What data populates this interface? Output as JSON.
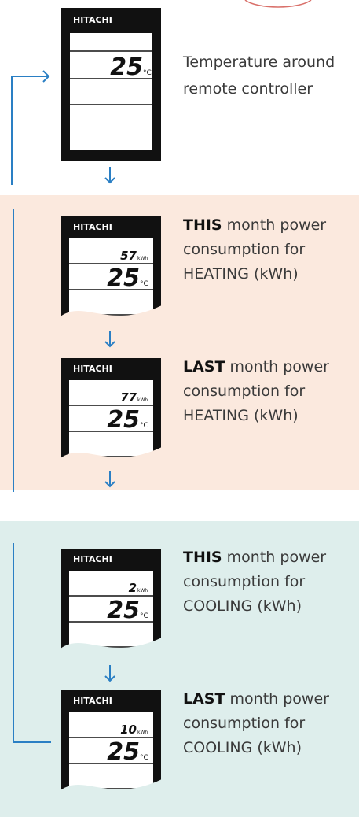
{
  "devices": [
    {
      "brand": "HITACHI",
      "temperature": "25",
      "temperature_unit": "°C",
      "description": "Temperature around remote controller"
    },
    {
      "brand": "HITACHI",
      "reading": "57",
      "reading_unit": "kWh",
      "temperature": "25",
      "temperature_unit": "°C",
      "description_bold": "THIS",
      "description": "month power consumption for HEATING (kWh)"
    },
    {
      "brand": "HITACHI",
      "reading": "77",
      "reading_unit": "kWh",
      "temperature": "25",
      "temperature_unit": "°C",
      "description_bold": "LAST",
      "description": "month power consumption for HEATING (kWh)"
    },
    {
      "brand": "HITACHI",
      "reading": "2",
      "reading_unit": "kWh",
      "temperature": "25",
      "temperature_unit": "°C",
      "description_bold": "THIS",
      "description": "month power consumption for COOLING (kWh)"
    },
    {
      "brand": "HITACHI",
      "reading": "10",
      "reading_unit": "kWh",
      "temperature": "25",
      "temperature_unit": "°C",
      "description_bold": "LAST",
      "description": "month power consumption for COOLING (kWh)"
    }
  ]
}
